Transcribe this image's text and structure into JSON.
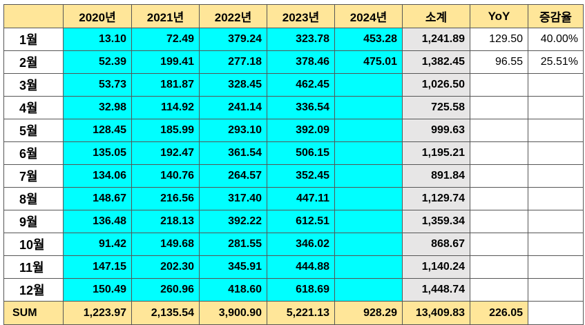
{
  "table": {
    "headers": [
      "2020년",
      "2021년",
      "2022년",
      "2023년",
      "2024년",
      "소계",
      "YoY",
      "증감율"
    ],
    "rows": [
      {
        "label": "1월",
        "values": [
          "13.10",
          "72.49",
          "379.24",
          "323.78",
          "453.28"
        ],
        "subtotal": "1,241.89",
        "yoy": "129.50",
        "rate": "40.00%"
      },
      {
        "label": "2월",
        "values": [
          "52.39",
          "199.41",
          "277.18",
          "378.46",
          "475.01"
        ],
        "subtotal": "1,382.45",
        "yoy": "96.55",
        "rate": "25.51%"
      },
      {
        "label": "3월",
        "values": [
          "53.73",
          "181.87",
          "328.45",
          "462.45",
          ""
        ],
        "subtotal": "1,026.50",
        "yoy": "",
        "rate": ""
      },
      {
        "label": "4월",
        "values": [
          "32.98",
          "114.92",
          "241.14",
          "336.54",
          ""
        ],
        "subtotal": "725.58",
        "yoy": "",
        "rate": ""
      },
      {
        "label": "5월",
        "values": [
          "128.45",
          "185.99",
          "293.10",
          "392.09",
          ""
        ],
        "subtotal": "999.63",
        "yoy": "",
        "rate": ""
      },
      {
        "label": "6월",
        "values": [
          "135.05",
          "192.47",
          "361.54",
          "506.15",
          ""
        ],
        "subtotal": "1,195.21",
        "yoy": "",
        "rate": ""
      },
      {
        "label": "7월",
        "values": [
          "134.06",
          "140.76",
          "264.57",
          "352.45",
          ""
        ],
        "subtotal": "891.84",
        "yoy": "",
        "rate": ""
      },
      {
        "label": "8월",
        "values": [
          "148.67",
          "216.56",
          "317.40",
          "447.11",
          ""
        ],
        "subtotal": "1,129.74",
        "yoy": "",
        "rate": ""
      },
      {
        "label": "9월",
        "values": [
          "136.48",
          "218.13",
          "392.22",
          "612.51",
          ""
        ],
        "subtotal": "1,359.34",
        "yoy": "",
        "rate": ""
      },
      {
        "label": "10월",
        "values": [
          "91.42",
          "149.68",
          "281.55",
          "346.02",
          ""
        ],
        "subtotal": "868.67",
        "yoy": "",
        "rate": ""
      },
      {
        "label": "11월",
        "values": [
          "147.15",
          "202.30",
          "345.91",
          "444.88",
          ""
        ],
        "subtotal": "1,140.24",
        "yoy": "",
        "rate": ""
      },
      {
        "label": "12월",
        "values": [
          "150.49",
          "260.96",
          "418.60",
          "618.69",
          ""
        ],
        "subtotal": "1,448.74",
        "yoy": "",
        "rate": ""
      }
    ],
    "sum": {
      "label": "SUM",
      "values": [
        "1,223.97",
        "2,135.54",
        "3,900.90",
        "5,221.13",
        "928.29"
      ],
      "subtotal": "13,409.83",
      "yoy": "226.05",
      "rate": ""
    }
  },
  "colors": {
    "header_bg": "#FFE699",
    "value_bg": "#00FFFF",
    "subtotal_bg": "#E7E6E6",
    "grid": "#555555"
  }
}
